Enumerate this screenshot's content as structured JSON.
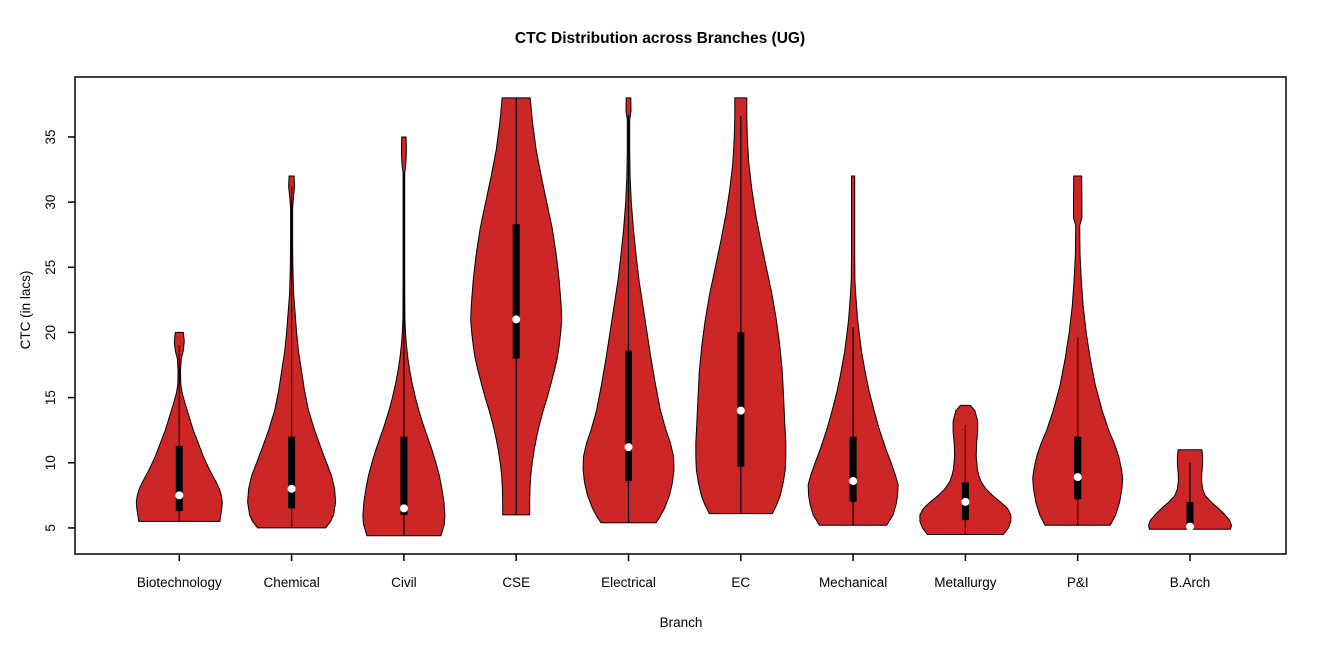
{
  "title": "CTC Distribution across Branches (UG)",
  "colors": {
    "violin_fill": "#CD2626",
    "violin_border": "#000000",
    "box": "#000000",
    "median_dot": "#FFFFFF",
    "axis": "#000000",
    "background": "#FFFFFF"
  },
  "chart_data": {
    "type": "violin",
    "title": "CTC Distribution across Branches (UG)",
    "xlabel": "Branch",
    "ylabel": "CTC (in lacs)",
    "ylim": [
      3,
      39.6
    ],
    "yticks": [
      5,
      10,
      15,
      20,
      25,
      30,
      35
    ],
    "grid": false,
    "legend": "none",
    "categories": [
      "Biotechnology",
      "Chemical",
      "Civil",
      "CSE",
      "Electrical",
      "EC",
      "Mechanical",
      "Metallurgy",
      "P&I",
      "B.Arch"
    ],
    "series": [
      {
        "name": "Biotechnology",
        "min": 5.5,
        "q1": 6.3,
        "median": 7.5,
        "q3": 11.3,
        "max": 20,
        "whisker": [
          5.5,
          19.0
        ],
        "width_profile": [
          [
            20.0,
            4
          ],
          [
            19.3,
            5
          ],
          [
            18.6,
            4
          ],
          [
            18.0,
            2
          ],
          [
            17.0,
            1.2
          ],
          [
            16.0,
            1.5
          ],
          [
            15.3,
            3
          ],
          [
            14.5,
            6
          ],
          [
            13.5,
            10
          ],
          [
            12.5,
            14
          ],
          [
            11.5,
            19
          ],
          [
            10.5,
            24
          ],
          [
            9.5,
            30
          ],
          [
            8.5,
            37
          ],
          [
            8.0,
            40
          ],
          [
            7.5,
            42
          ],
          [
            7.0,
            43
          ],
          [
            6.5,
            42.5
          ],
          [
            6.0,
            41.5
          ],
          [
            5.5,
            40.5
          ]
        ]
      },
      {
        "name": "Chemical",
        "min": 5.0,
        "q1": 6.5,
        "median": 8.0,
        "q3": 12.0,
        "max": 32,
        "whisker": [
          5.0,
          31.2
        ],
        "width_profile": [
          [
            32.0,
            2.5
          ],
          [
            31.2,
            3
          ],
          [
            30.5,
            2
          ],
          [
            29.5,
            1
          ],
          [
            27.0,
            1
          ],
          [
            25.0,
            1.3
          ],
          [
            23.0,
            2
          ],
          [
            21.5,
            3.5
          ],
          [
            20.0,
            5
          ],
          [
            18.5,
            7
          ],
          [
            17.0,
            10
          ],
          [
            15.5,
            13
          ],
          [
            14.0,
            17
          ],
          [
            12.5,
            23
          ],
          [
            11.0,
            30
          ],
          [
            10.0,
            35
          ],
          [
            9.0,
            40
          ],
          [
            8.0,
            43
          ],
          [
            7.0,
            44
          ],
          [
            6.0,
            42
          ],
          [
            5.5,
            39
          ],
          [
            5.0,
            34
          ]
        ]
      },
      {
        "name": "Civil",
        "min": 4.4,
        "q1": 6.0,
        "median": 6.5,
        "q3": 12.0,
        "max": 35,
        "whisker": [
          4.4,
          32.3
        ],
        "width_profile": [
          [
            35.0,
            2.2
          ],
          [
            33.8,
            2.5
          ],
          [
            32.8,
            1.8
          ],
          [
            32.2,
            0.8
          ],
          [
            28.0,
            0.8
          ],
          [
            24.0,
            0.8
          ],
          [
            21.0,
            1.0
          ],
          [
            20.0,
            1.6
          ],
          [
            19.0,
            2.6
          ],
          [
            18.0,
            4
          ],
          [
            17.0,
            6
          ],
          [
            16.0,
            8.5
          ],
          [
            15.0,
            11.5
          ],
          [
            14.0,
            15
          ],
          [
            13.0,
            19
          ],
          [
            12.0,
            23.5
          ],
          [
            11.0,
            28
          ],
          [
            10.0,
            32
          ],
          [
            9.0,
            35.5
          ],
          [
            8.0,
            38
          ],
          [
            7.0,
            40
          ],
          [
            6.0,
            41
          ],
          [
            5.3,
            40.5
          ],
          [
            4.4,
            37
          ]
        ]
      },
      {
        "name": "CSE",
        "min": 6.0,
        "q1": 18.0,
        "median": 21.0,
        "q3": 28.3,
        "max": 38,
        "whisker": [
          6.0,
          38.0
        ],
        "width_profile": [
          [
            38.0,
            14
          ],
          [
            36.0,
            16.5
          ],
          [
            34.0,
            20
          ],
          [
            32.0,
            25
          ],
          [
            30.0,
            30.5
          ],
          [
            28.0,
            36
          ],
          [
            26.0,
            40
          ],
          [
            24.0,
            43
          ],
          [
            22.0,
            45
          ],
          [
            21.0,
            45.5
          ],
          [
            20.0,
            44.5
          ],
          [
            19.0,
            43
          ],
          [
            18.0,
            41
          ],
          [
            17.0,
            38
          ],
          [
            16.0,
            34.5
          ],
          [
            15.0,
            31
          ],
          [
            14.0,
            27
          ],
          [
            13.0,
            23.5
          ],
          [
            12.0,
            20.5
          ],
          [
            11.0,
            18
          ],
          [
            10.0,
            16
          ],
          [
            9.0,
            14.5
          ],
          [
            8.0,
            13.8
          ],
          [
            7.0,
            13.5
          ],
          [
            6.0,
            13.5
          ]
        ]
      },
      {
        "name": "Electrical",
        "min": 5.4,
        "q1": 8.6,
        "median": 11.2,
        "q3": 18.6,
        "max": 38,
        "whisker": [
          5.4,
          36.7
        ],
        "width_profile": [
          [
            38.0,
            2.3
          ],
          [
            37.0,
            2.5
          ],
          [
            36.3,
            1.2
          ],
          [
            34.0,
            1.2
          ],
          [
            32.0,
            1.6
          ],
          [
            30.0,
            2.8
          ],
          [
            28.0,
            4.8
          ],
          [
            26.0,
            7.5
          ],
          [
            24.0,
            10.5
          ],
          [
            22.0,
            14.5
          ],
          [
            20.0,
            18.5
          ],
          [
            18.0,
            22.5
          ],
          [
            16.0,
            27
          ],
          [
            14.0,
            32
          ],
          [
            12.5,
            37.5
          ],
          [
            11.5,
            42
          ],
          [
            10.5,
            45
          ],
          [
            9.5,
            45.5
          ],
          [
            8.5,
            44
          ],
          [
            7.5,
            41
          ],
          [
            6.5,
            36
          ],
          [
            5.8,
            31
          ],
          [
            5.4,
            27.5
          ]
        ]
      },
      {
        "name": "EC",
        "min": 6.1,
        "q1": 9.7,
        "median": 14.0,
        "q3": 20.0,
        "max": 38,
        "whisker": [
          6.1,
          36.6
        ],
        "width_profile": [
          [
            38.0,
            6
          ],
          [
            36.5,
            6
          ],
          [
            35.0,
            6.5
          ],
          [
            33.0,
            8
          ],
          [
            31.0,
            11
          ],
          [
            29.0,
            15
          ],
          [
            27.0,
            20
          ],
          [
            25.0,
            25.5
          ],
          [
            23.0,
            31
          ],
          [
            21.0,
            35.5
          ],
          [
            19.0,
            39
          ],
          [
            17.0,
            41.5
          ],
          [
            15.0,
            42.8
          ],
          [
            13.0,
            44
          ],
          [
            11.5,
            45
          ],
          [
            10.5,
            45
          ],
          [
            9.5,
            44.5
          ],
          [
            8.5,
            42.5
          ],
          [
            7.5,
            39.5
          ],
          [
            6.8,
            36
          ],
          [
            6.1,
            31.5
          ]
        ]
      },
      {
        "name": "Mechanical",
        "min": 5.2,
        "q1": 7.0,
        "median": 8.6,
        "q3": 12.0,
        "max": 32,
        "whisker": [
          5.2,
          20.4
        ],
        "width_profile": [
          [
            32.0,
            1.6
          ],
          [
            29.0,
            1.6
          ],
          [
            26.0,
            1.6
          ],
          [
            24.0,
            1.8
          ],
          [
            22.5,
            3
          ],
          [
            21.0,
            4.5
          ],
          [
            20.0,
            6
          ],
          [
            18.5,
            8.5
          ],
          [
            17.0,
            12
          ],
          [
            15.5,
            16
          ],
          [
            14.0,
            21
          ],
          [
            12.5,
            26.5
          ],
          [
            11.0,
            33
          ],
          [
            10.0,
            38
          ],
          [
            9.0,
            42.5
          ],
          [
            8.3,
            45
          ],
          [
            7.5,
            44.5
          ],
          [
            6.8,
            43
          ],
          [
            6.0,
            40
          ],
          [
            5.2,
            33.5
          ]
        ]
      },
      {
        "name": "Metallurgy",
        "min": 4.5,
        "q1": 5.6,
        "median": 7.0,
        "q3": 8.5,
        "max": 14.4,
        "whisker": [
          4.5,
          12.9
        ],
        "width_profile": [
          [
            14.4,
            5
          ],
          [
            14.0,
            9.5
          ],
          [
            13.2,
            12.3
          ],
          [
            12.4,
            12.3
          ],
          [
            11.5,
            11.2
          ],
          [
            10.5,
            10.8
          ],
          [
            9.5,
            12
          ],
          [
            9.0,
            13.5
          ],
          [
            8.5,
            16
          ],
          [
            8.0,
            20.5
          ],
          [
            7.5,
            27
          ],
          [
            7.0,
            35
          ],
          [
            6.5,
            42
          ],
          [
            6.0,
            45.5
          ],
          [
            5.5,
            45.5
          ],
          [
            5.0,
            43
          ],
          [
            4.5,
            38
          ]
        ]
      },
      {
        "name": "P&I",
        "min": 5.2,
        "q1": 7.2,
        "median": 8.9,
        "q3": 12.0,
        "max": 32,
        "whisker": [
          5.2,
          19.6
        ],
        "width_profile": [
          [
            32.0,
            4
          ],
          [
            30.0,
            4.2
          ],
          [
            28.8,
            4.2
          ],
          [
            28.2,
            2
          ],
          [
            26.0,
            2.3
          ],
          [
            24.0,
            3.6
          ],
          [
            22.0,
            5.5
          ],
          [
            20.0,
            8.5
          ],
          [
            18.0,
            12.5
          ],
          [
            16.0,
            17.5
          ],
          [
            14.0,
            24.5
          ],
          [
            12.5,
            31
          ],
          [
            11.5,
            36.5
          ],
          [
            10.5,
            41
          ],
          [
            9.5,
            43.8
          ],
          [
            8.8,
            45
          ],
          [
            8.0,
            44.2
          ],
          [
            7.0,
            42
          ],
          [
            6.0,
            38
          ],
          [
            5.2,
            32.5
          ]
        ]
      },
      {
        "name": "B.Arch",
        "min": 4.9,
        "q1": 5.1,
        "median": 5.1,
        "q3": 7.0,
        "max": 11,
        "whisker": [
          4.9,
          10.0
        ],
        "width_profile": [
          [
            11.0,
            12
          ],
          [
            10.4,
            12.6
          ],
          [
            9.8,
            12.6
          ],
          [
            9.2,
            11.8
          ],
          [
            8.6,
            11.6
          ],
          [
            8.0,
            12.6
          ],
          [
            7.5,
            15
          ],
          [
            7.0,
            21
          ],
          [
            6.5,
            28.5
          ],
          [
            6.0,
            35
          ],
          [
            5.6,
            39.5
          ],
          [
            5.2,
            41.5
          ],
          [
            4.9,
            40.5
          ]
        ]
      }
    ]
  }
}
